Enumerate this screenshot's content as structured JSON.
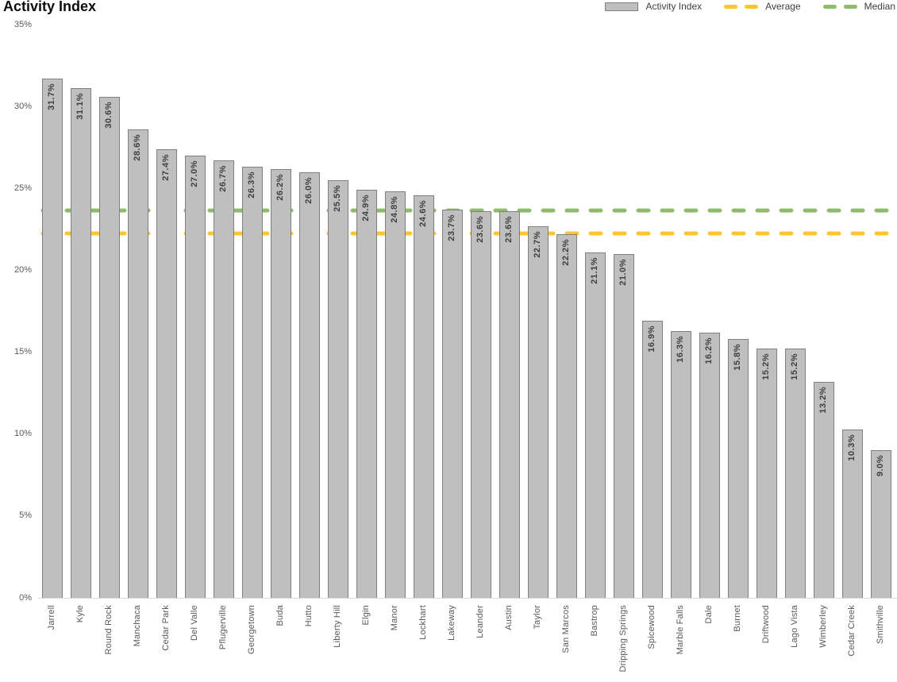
{
  "title": "Activity Index",
  "legend": {
    "series_label": "Activity Index",
    "average_label": "Average",
    "median_label": "Median"
  },
  "colors": {
    "bar_fill": "#BFBFBF",
    "bar_border": "#7F7F7F",
    "value_text": "#404040",
    "axis_text": "#595959",
    "average_line": "#FBC62F",
    "median_line": "#8FBC6B"
  },
  "chart_data": {
    "type": "bar",
    "title": "Activity Index",
    "categories": [
      "Jarrell",
      "Kyle",
      "Round Rock",
      "Manchaca",
      "Cedar Park",
      "Del Valle",
      "Pflugerville",
      "Georgetown",
      "Buda",
      "Hutto",
      "Liberty Hill",
      "Elgin",
      "Manor",
      "Lockhart",
      "Lakeway",
      "Leander",
      "Austin",
      "Taylor",
      "San Marcos",
      "Bastrop",
      "Dripping Springs",
      "Spicewood",
      "Marble Falls",
      "Dale",
      "Burnet",
      "Driftwood",
      "Lago Vista",
      "Wimberley",
      "Cedar Creek",
      "Smithville"
    ],
    "values": [
      31.7,
      31.1,
      30.6,
      28.6,
      27.4,
      27.0,
      26.7,
      26.3,
      26.2,
      26.0,
      25.5,
      24.9,
      24.8,
      24.6,
      23.7,
      23.6,
      23.6,
      22.7,
      22.2,
      21.1,
      21.0,
      16.9,
      16.3,
      16.2,
      15.8,
      15.2,
      15.2,
      13.2,
      10.3,
      9.0
    ],
    "value_labels": [
      "31.7%",
      "31.1%",
      "30.6%",
      "28.6%",
      "27.4%",
      "27.0%",
      "26.7%",
      "26.3%",
      "26.2%",
      "26.0%",
      "25.5%",
      "24.9%",
      "24.8%",
      "24.6%",
      "23.7%",
      "23.6%",
      "23.6%",
      "22.7%",
      "22.2%",
      "21.1%",
      "21.0%",
      "16.9%",
      "16.3%",
      "16.2%",
      "15.8%",
      "15.2%",
      "15.2%",
      "13.2%",
      "10.3%",
      "9.0%"
    ],
    "average": 22.25,
    "median": 23.65,
    "xlabel": "",
    "ylabel": "",
    "ylim": [
      0,
      35
    ],
    "yticks": [
      "0%",
      "5%",
      "10%",
      "15%",
      "20%",
      "25%",
      "30%",
      "35%"
    ],
    "grid": false,
    "legend_position": "top-right"
  }
}
